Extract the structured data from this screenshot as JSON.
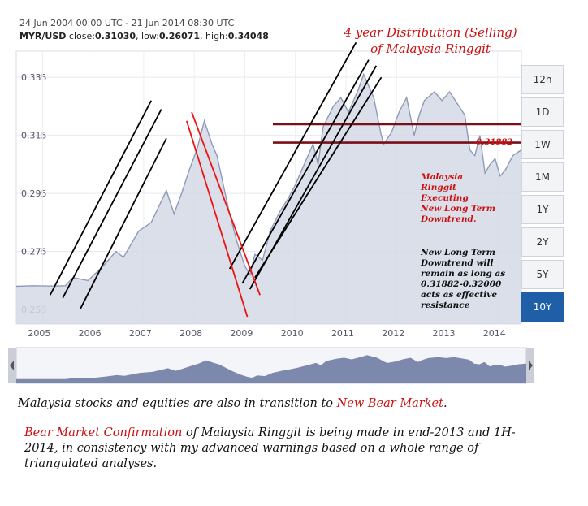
{
  "header": {
    "date_range": "24 Jun 2004 00:00 UTC - 21 Jun 2014 08:30 UTC",
    "pair": "MYR/USD",
    "close_label": "close:",
    "close_value": "0.31030",
    "low_label": "low:",
    "low_value": "0.26071",
    "high_label": "high:",
    "high_value": "0.34048"
  },
  "annotation_title": [
    "4 year Distribution (Selling)",
    "of Malaysia Ringgit"
  ],
  "range_buttons": [
    "12h",
    "1D",
    "1W",
    "1M",
    "1Y",
    "2Y",
    "5Y",
    "10Y"
  ],
  "active_range": "10Y",
  "notes": {
    "level_label": "0.31882",
    "red_note": [
      "Malaysia",
      "Ringgit",
      "Executing",
      "New Long Term",
      "Downtrend."
    ],
    "black_note": [
      "New Long Term",
      "Downtrend will",
      "remain as long as",
      "0.31882-0.32000",
      "acts as effective",
      "resistance"
    ]
  },
  "captions": {
    "line1_pre": "Malaysia stocks and equities are also in transition to ",
    "line1_hl": "New Bear Market",
    "line1_post": ".",
    "line2_hl": "Bear Market Confirmation",
    "line2_rest": " of Malaysia Ringgit is being made in end-2013 and 1H-2014, in consistency with my advanced warnings based on a whole range of triangulated analyses."
  },
  "colors": {
    "series_line": "#8e9ab7",
    "series_fill": "#d4d9e6",
    "navigator_fill": "#6f7ca3",
    "trend_black": "#000000",
    "trend_red": "#ee1111",
    "resistance": "#7a0f1a",
    "active_button": "#1f5fa8"
  },
  "chart_data": {
    "type": "area",
    "title": "MYR/USD",
    "x_ticks": [
      "2005",
      "2006",
      "2007",
      "2008",
      "2009",
      "2010",
      "2011",
      "2012",
      "2013",
      "2014"
    ],
    "y_ticks": [
      "0.255",
      "0.275",
      "0.295",
      "0.315",
      "0.335"
    ],
    "ylim": [
      0.25,
      0.344
    ],
    "xlim": [
      2004.48,
      2014.47
    ],
    "grid": true,
    "series": [
      {
        "x": [
          2004.48,
          2004.8,
          2005.2,
          2005.45,
          2005.6,
          2005.9,
          2006.2,
          2006.45,
          2006.6,
          2006.9,
          2007.15,
          2007.45,
          2007.6,
          2007.75,
          2007.9,
          2008.05,
          2008.2,
          2008.35,
          2008.45,
          2008.55,
          2008.7,
          2008.85,
          2009.0,
          2009.1,
          2009.2,
          2009.35,
          2009.5,
          2009.7,
          2009.85,
          2010.0,
          2010.2,
          2010.35,
          2010.45,
          2010.55,
          2010.75,
          2010.9,
          2011.05,
          2011.25,
          2011.35,
          2011.45,
          2011.55,
          2011.7,
          2011.75,
          2011.9,
          2012.05,
          2012.2,
          2012.35,
          2012.45,
          2012.55,
          2012.75,
          2012.9,
          2013.05,
          2013.2,
          2013.35,
          2013.45,
          2013.55,
          2013.65,
          2013.75,
          2013.85,
          2013.95,
          2014.05,
          2014.15,
          2014.3,
          2014.47
        ],
        "y": [
          0.263,
          0.2632,
          0.2631,
          0.2632,
          0.266,
          0.265,
          0.27,
          0.275,
          0.273,
          0.282,
          0.285,
          0.296,
          0.288,
          0.295,
          0.303,
          0.31,
          0.32,
          0.312,
          0.308,
          0.3,
          0.288,
          0.278,
          0.27,
          0.267,
          0.274,
          0.272,
          0.282,
          0.289,
          0.293,
          0.298,
          0.306,
          0.312,
          0.305,
          0.318,
          0.325,
          0.328,
          0.323,
          0.331,
          0.336,
          0.332,
          0.328,
          0.315,
          0.312,
          0.316,
          0.323,
          0.328,
          0.315,
          0.322,
          0.327,
          0.33,
          0.327,
          0.33,
          0.326,
          0.322,
          0.31,
          0.308,
          0.315,
          0.302,
          0.305,
          0.307,
          0.301,
          0.303,
          0.308,
          0.31
        ]
      }
    ],
    "resistance_levels": [
      0.31882,
      0.3125
    ],
    "trendlines_black": [
      {
        "from": [
          2005.15,
          0.26
        ],
        "to": [
          2007.15,
          0.327
        ]
      },
      {
        "from": [
          2005.4,
          0.259
        ],
        "to": [
          2007.35,
          0.324
        ]
      },
      {
        "from": [
          2005.75,
          0.2553
        ],
        "to": [
          2007.45,
          0.314
        ]
      },
      {
        "from": [
          2008.7,
          0.269
        ],
        "to": [
          2011.2,
          0.347
        ]
      },
      {
        "from": [
          2008.95,
          0.264
        ],
        "to": [
          2011.45,
          0.341
        ]
      },
      {
        "from": [
          2009.1,
          0.262
        ],
        "to": [
          2011.6,
          0.339
        ]
      },
      {
        "from": [
          2009.2,
          0.266
        ],
        "to": [
          2011.7,
          0.335
        ]
      }
    ],
    "trendlines_red": [
      {
        "from": [
          2007.85,
          0.32
        ],
        "to": [
          2009.05,
          0.2525
        ]
      },
      {
        "from": [
          2007.95,
          0.323
        ],
        "to": [
          2009.3,
          0.26
        ]
      }
    ]
  }
}
